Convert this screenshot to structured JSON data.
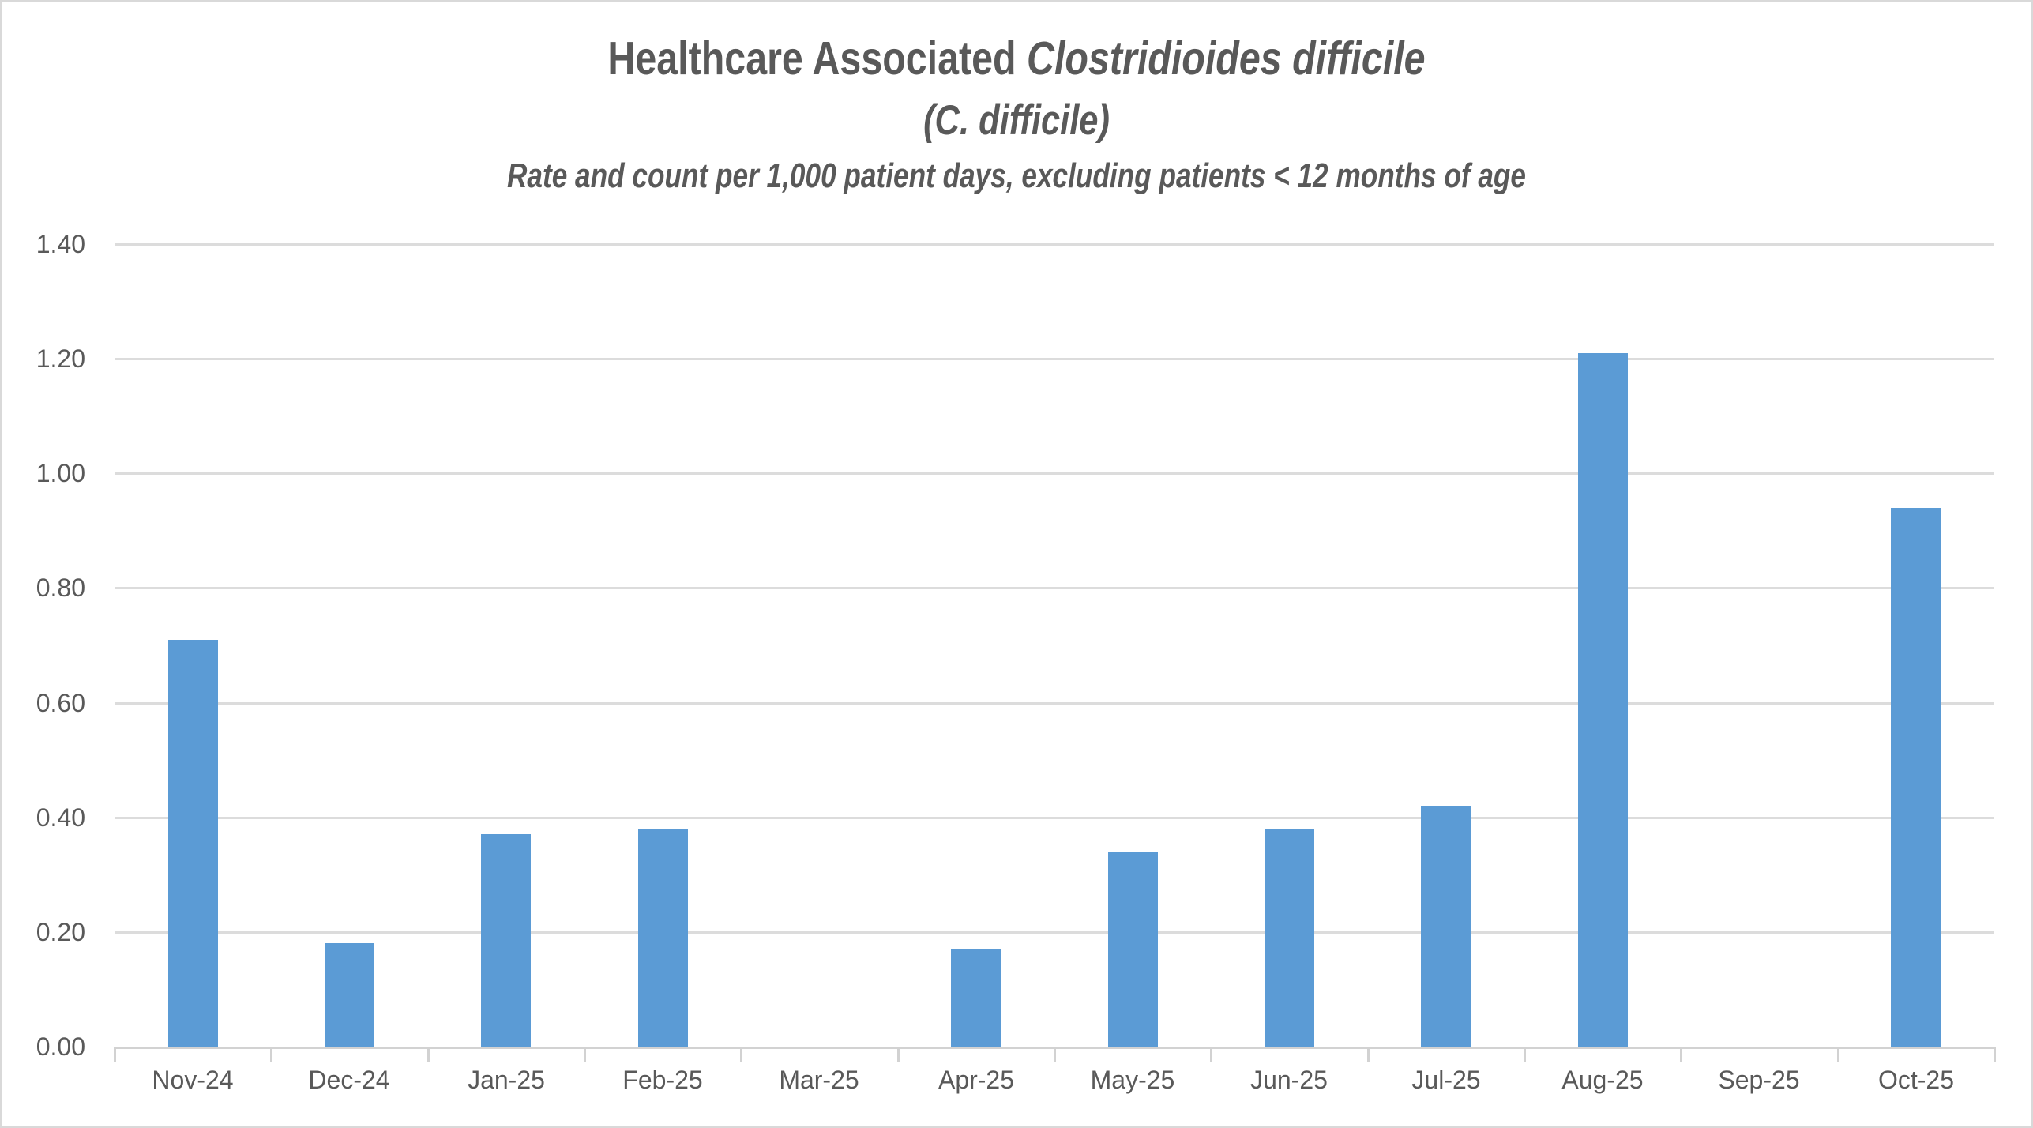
{
  "chart": {
    "title_line1_regular": "Healthcare Associated ",
    "title_line1_italic": "Clostridioides difficile",
    "title_line2": "(C. difficile)",
    "subtitle": "Rate and count per 1,000 patient days, excluding patients < 12 months of age"
  },
  "chart_data": {
    "type": "bar",
    "title": "Healthcare Associated Clostridioides difficile (C. difficile)",
    "subtitle": "Rate and count per 1,000 patient days, excluding patients < 12 months of age",
    "categories": [
      "Nov-24",
      "Dec-24",
      "Jan-25",
      "Feb-25",
      "Mar-25",
      "Apr-25",
      "May-25",
      "Jun-25",
      "Jul-25",
      "Aug-25",
      "Sep-25",
      "Oct-25"
    ],
    "values": [
      0.71,
      0.18,
      0.37,
      0.38,
      0,
      0.17,
      0.34,
      0.38,
      0.42,
      1.21,
      0,
      0.94
    ],
    "xlabel": "",
    "ylabel": "",
    "ylim": [
      0,
      1.4
    ],
    "ytick_step": 0.2,
    "ytick_labels": [
      "0.00",
      "0.20",
      "0.40",
      "0.60",
      "0.80",
      "1.00",
      "1.20",
      "1.40"
    ],
    "grid": true,
    "legend": false,
    "colors": {
      "bar": "#5B9BD5",
      "gridline": "#DCDCDC",
      "axis": "#D2D2D2",
      "text": "#595959",
      "border": "#D9D9D9",
      "background": "#FFFFFF"
    }
  }
}
